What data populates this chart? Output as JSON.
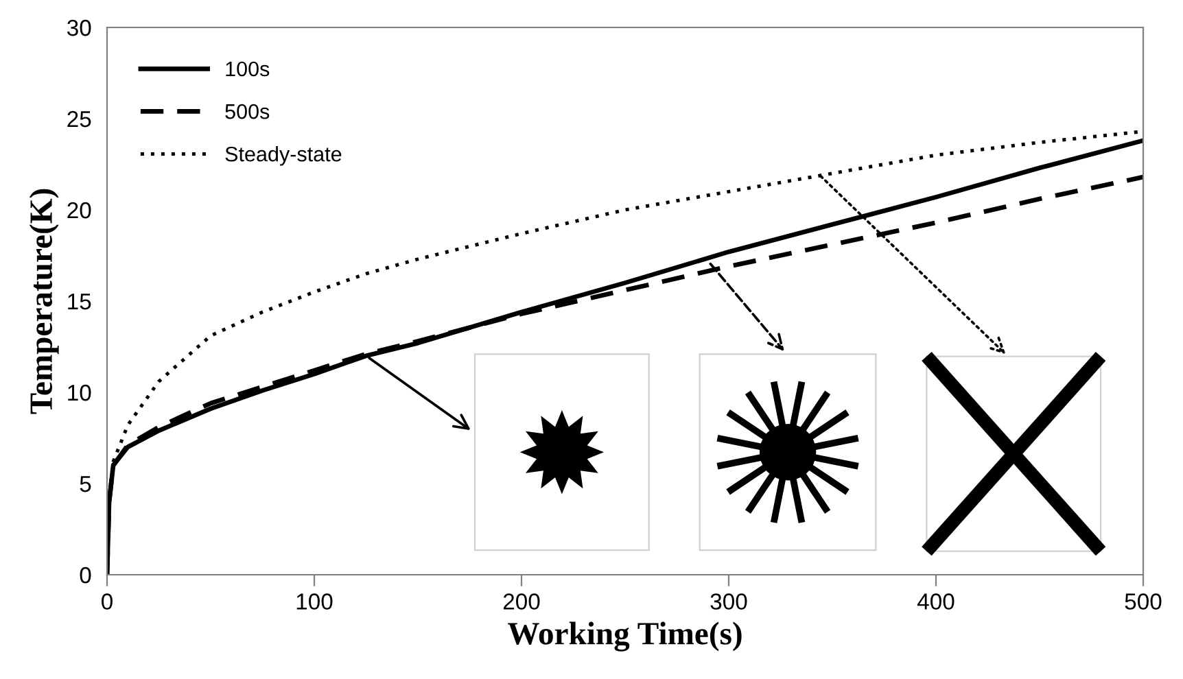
{
  "chart_data": {
    "type": "line",
    "xlabel": "Working Time(s)",
    "ylabel": "Temperature(K)",
    "x": [
      0,
      1,
      3,
      10,
      25,
      50,
      75,
      100,
      125,
      150,
      200,
      250,
      300,
      350,
      400,
      450,
      500
    ],
    "series": [
      {
        "name": "100s",
        "color": "#000000",
        "line_style": "solid",
        "values": [
          0,
          4,
          6,
          7,
          7.9,
          9.1,
          10.1,
          11,
          12,
          12.7,
          14.4,
          16.0,
          17.7,
          19.2,
          20.7,
          22.3,
          23.8
        ]
      },
      {
        "name": "500s",
        "color": "#000000",
        "line_style": "dashed",
        "values": [
          0,
          4,
          6,
          7.1,
          8.1,
          9.4,
          10.3,
          11.2,
          12.1,
          12.8,
          14.3,
          15.6,
          16.9,
          18.1,
          19.3,
          20.6,
          21.8
        ]
      },
      {
        "name": "Steady-state",
        "color": "#000000",
        "line_style": "dotted",
        "values": [
          0,
          4,
          6.2,
          8.2,
          10.6,
          13.1,
          14.4,
          15.5,
          16.5,
          17.3,
          18.7,
          20.0,
          21.0,
          22.0,
          23.0,
          23.7,
          24.3
        ]
      }
    ],
    "xlim": [
      0,
      500
    ],
    "ylim": [
      0,
      30
    ],
    "xticks": [
      0,
      100,
      200,
      300,
      400,
      500
    ],
    "yticks": [
      0,
      5,
      10,
      15,
      20,
      25,
      30
    ],
    "grid": false,
    "legend": "top left"
  }
}
